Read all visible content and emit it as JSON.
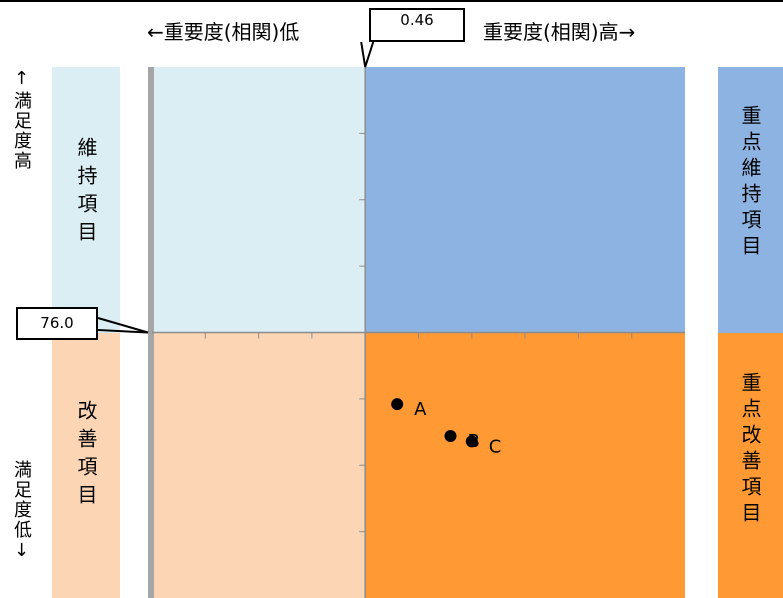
{
  "header": {
    "low_label": "←重要度(相関)低",
    "high_label": "重要度(相関)高→"
  },
  "side": {
    "satisfaction_high": "↑満足度高",
    "satisfaction_low": "満足度低↓"
  },
  "quadrants": {
    "maintain": "維持項目",
    "improve": "改善項目",
    "key_maintain": "重点維持項目",
    "key_improve": "重点改善項目"
  },
  "colors": {
    "maintain": "#dbeef3",
    "improve": "#fcd5b4",
    "key_maintain": "#8db3e2",
    "key_improve": "#ff9933"
  },
  "chart_data": {
    "type": "scatter",
    "title": "",
    "xlabel": "",
    "ylabel": "",
    "x_reference": "0.46",
    "y_reference": "76.0",
    "x_reference_value": 0.46,
    "y_reference_value": 76.0,
    "xlim": [
      0.26,
      0.76
    ],
    "ylim": [
      66.0,
      86.0
    ],
    "grid": false,
    "points": [
      {
        "label": "A",
        "x": 0.49,
        "y": 73.3
      },
      {
        "label": "B",
        "x": 0.54,
        "y": 72.1
      },
      {
        "label": "C",
        "x": 0.56,
        "y": 71.9
      }
    ]
  }
}
